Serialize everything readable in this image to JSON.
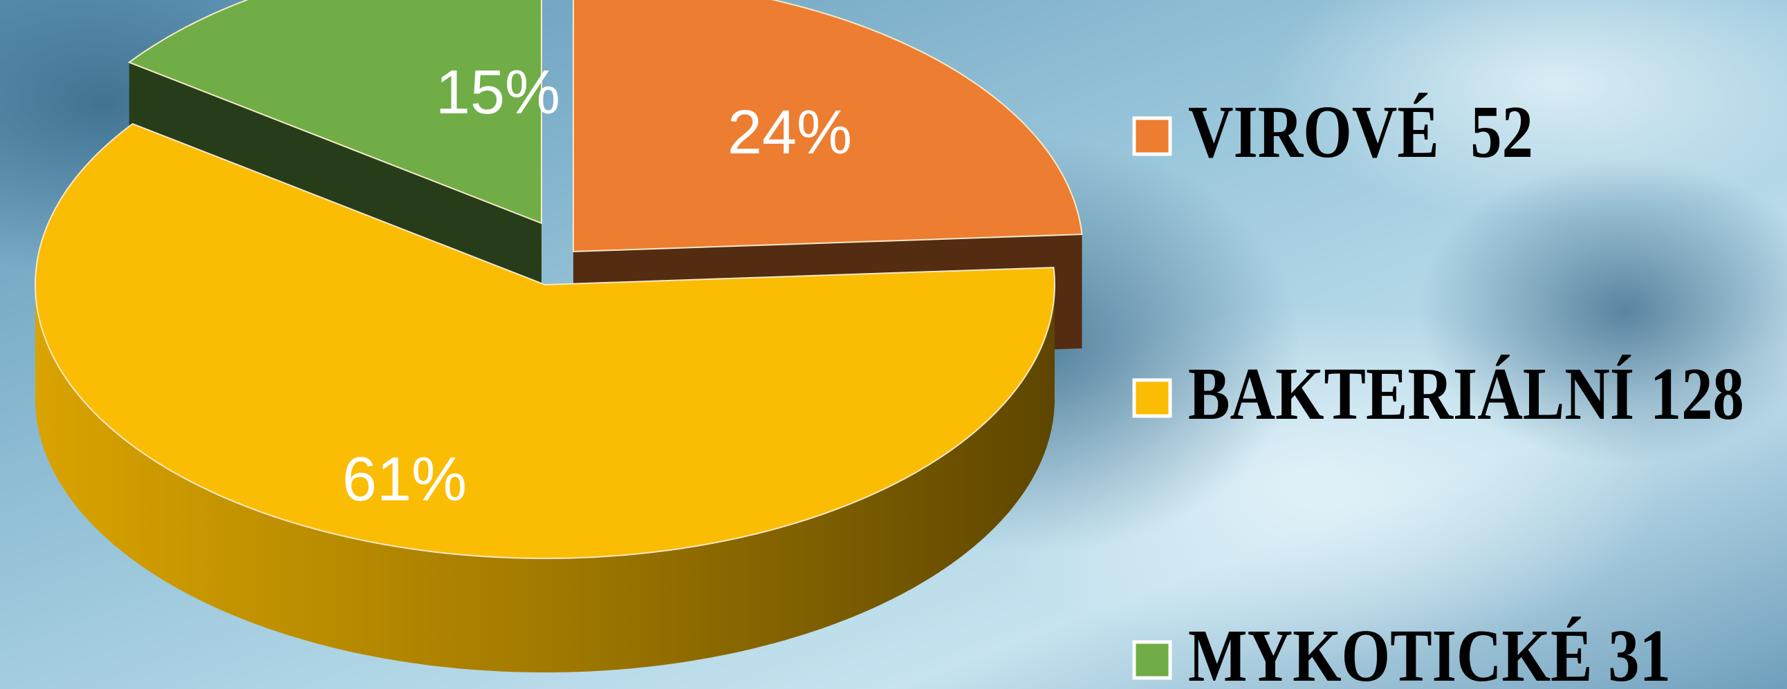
{
  "chart_data": {
    "type": "pie",
    "three_d": true,
    "categories": [
      "VIROVÉ  52",
      "BAKTERIÁLNÍ 128",
      "MYKOTICKÉ 31"
    ],
    "values": [
      24,
      61,
      15
    ],
    "value_labels": [
      "24%",
      "61%",
      "15%"
    ],
    "colors": [
      "#ed7d31",
      "#fbbc04",
      "#70ad47"
    ],
    "legend": "right"
  }
}
